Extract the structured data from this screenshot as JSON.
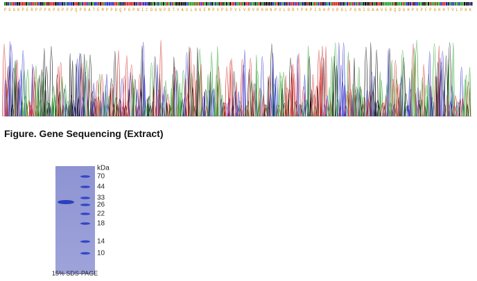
{
  "sequence": {
    "protein": "P G G K P E R P P P K P G P P P Q P R A T E M P P D Q P G P N I C D G N P D T V A V L R G E M P V P G P V F V R V R H H N P V L D R Y P H P I G H P V R G L P G N I G A A V E R Q D G H P V P F P G H H T V L P K K"
  },
  "figure_caption": "Figure. Gene Sequencing (Extract)",
  "gel": {
    "unit_label": "kDa",
    "markers": [
      "70",
      "44",
      "33",
      "26",
      "22",
      "18",
      "14",
      "10"
    ],
    "caption": "15% SDS-PAGE"
  }
}
